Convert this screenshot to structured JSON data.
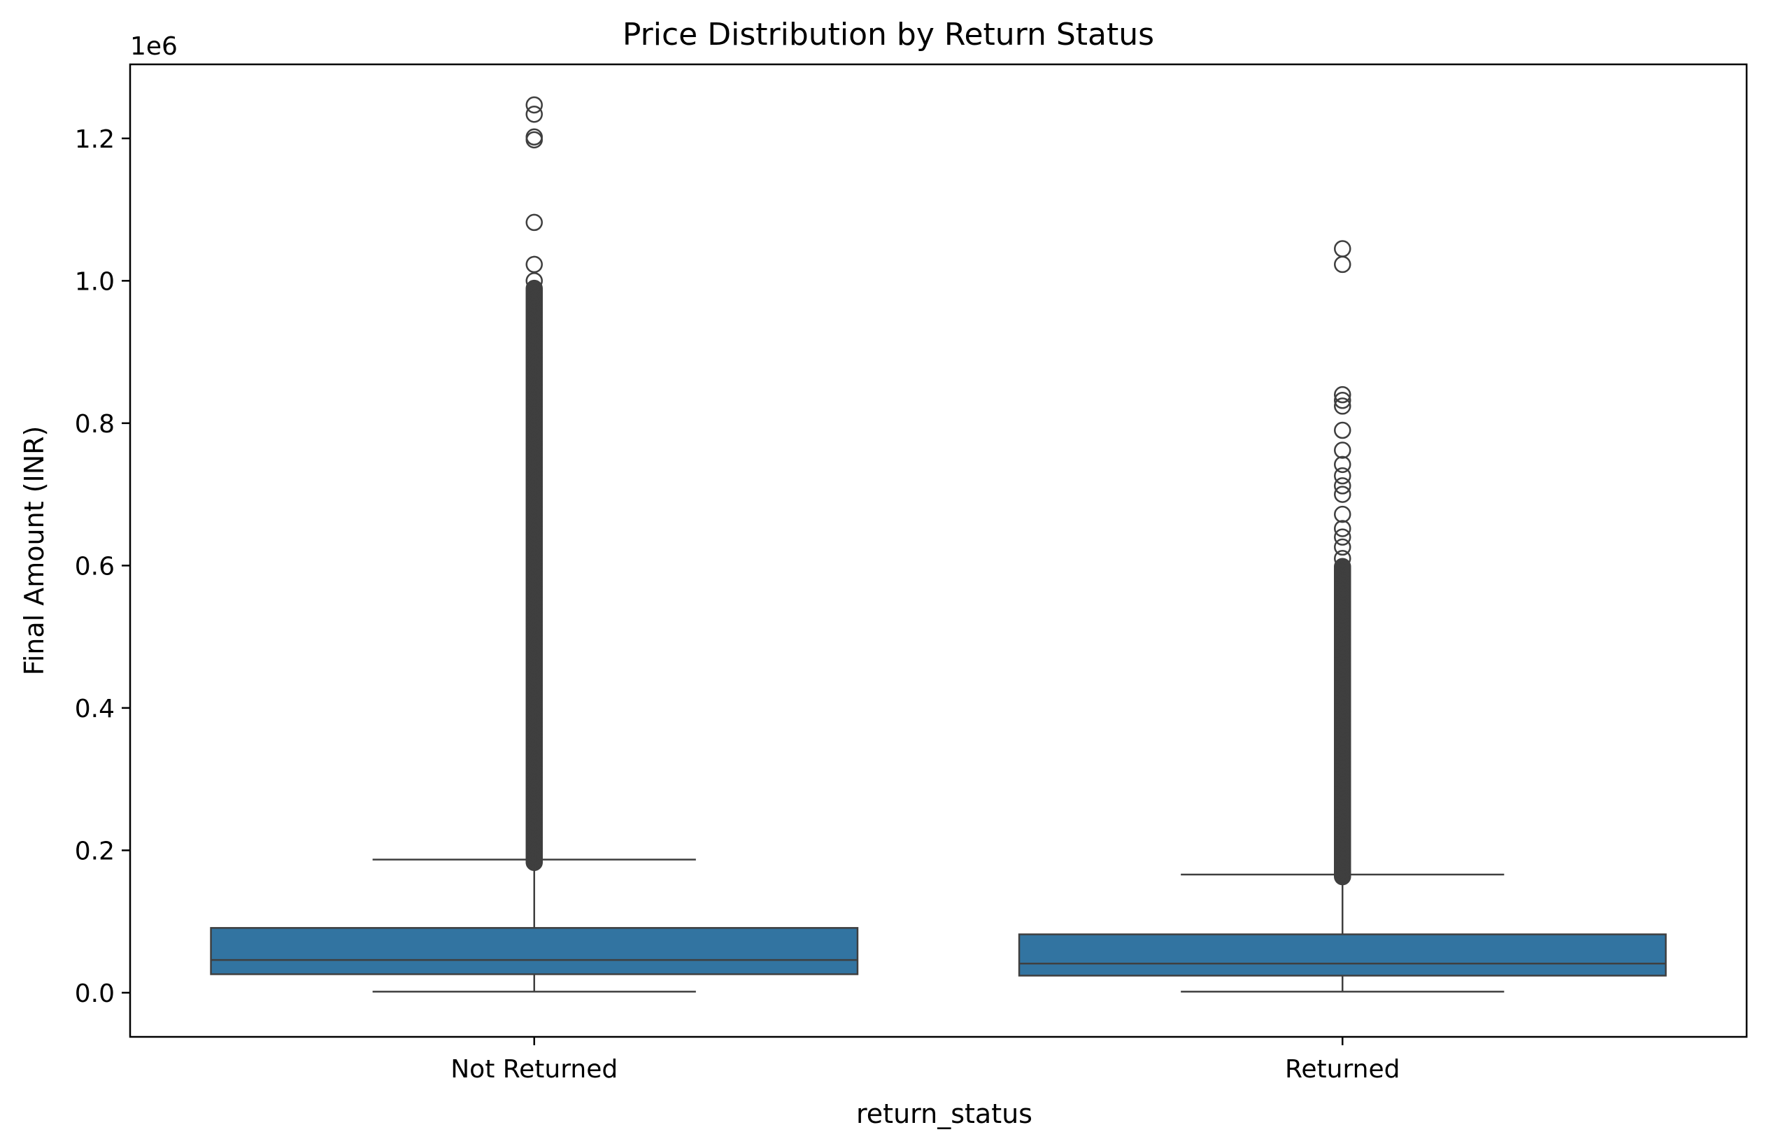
{
  "chart_data": {
    "type": "box",
    "title": "Price Distribution by Return Status",
    "xlabel": "return_status",
    "ylabel": "Final Amount (INR)",
    "y_offset_label": "1e6",
    "ylim": [
      -0.062,
      1.304
    ],
    "yticks": [
      0.0,
      0.2,
      0.4,
      0.6,
      0.8,
      1.0,
      1.2
    ],
    "ytick_labels": [
      "0.0",
      "0.2",
      "0.4",
      "0.6",
      "0.8",
      "1.0",
      "1.2"
    ],
    "categories": [
      "Not Returned",
      "Returned"
    ],
    "box_color": "#3274a1",
    "edge_color": "#3f3f3f",
    "boxes": [
      {
        "category": "Not Returned",
        "whisker_low": 0.0015,
        "q1": 0.026,
        "median": 0.046,
        "q3": 0.091,
        "whisker_high": 0.187,
        "outlier_band": [
          0.183,
          0.99
        ],
        "outliers": [
          1.0,
          1.023,
          1.082,
          1.198,
          1.202,
          1.234,
          1.247
        ]
      },
      {
        "category": "Returned",
        "whisker_low": 0.0015,
        "q1": 0.024,
        "median": 0.041,
        "q3": 0.082,
        "whisker_high": 0.166,
        "outlier_band": [
          0.163,
          0.6
        ],
        "outliers": [
          0.61,
          0.626,
          0.64,
          0.652,
          0.672,
          0.7,
          0.712,
          0.726,
          0.742,
          0.762,
          0.79,
          0.824,
          0.832,
          0.84,
          1.023,
          1.045
        ]
      }
    ]
  }
}
